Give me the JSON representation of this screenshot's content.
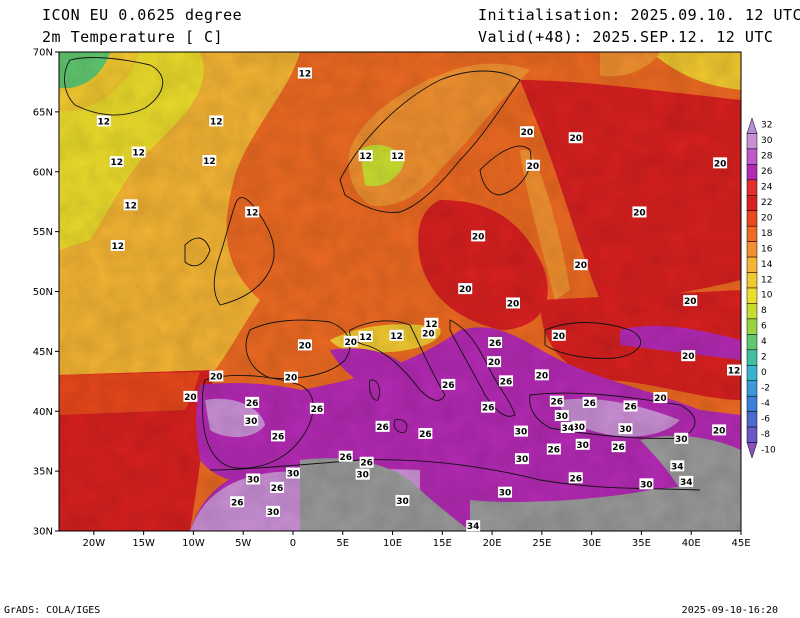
{
  "header": {
    "model": "ICON EU 0.0625 degree",
    "variable": "2m Temperature [ C]",
    "init": "Initialisation: 2025.09.10. 12 UTC",
    "valid": "Valid(+48): 2025.SEP.12. 12 UTC"
  },
  "footer": {
    "left": "GrADS: COLA/IGES",
    "right": "2025-09-10-16:20"
  },
  "axes": {
    "lat_labels": [
      "30N",
      "35N",
      "40N",
      "45N",
      "50N",
      "55N",
      "60N",
      "65N",
      "70N"
    ],
    "lon_labels": [
      "20W",
      "15W",
      "10W",
      "5W",
      "0",
      "5E",
      "10E",
      "15E",
      "20E",
      "25E",
      "30E",
      "35E",
      "40E",
      "45E"
    ]
  },
  "colorbar": {
    "labels": [
      "32",
      "30",
      "28",
      "26",
      "24",
      "22",
      "20",
      "18",
      "16",
      "14",
      "12",
      "10",
      "8",
      "6",
      "4",
      "2",
      "0",
      "-2",
      "-4",
      "-6",
      "-8",
      "-10"
    ],
    "colors": [
      "#b48cd8",
      "#c98fd4",
      "#c05ac8",
      "#b42ab4",
      "#e0302e",
      "#d82020",
      "#e8481c",
      "#ec6a22",
      "#f09030",
      "#f4b434",
      "#f0c830",
      "#ecdc2c",
      "#c8dc30",
      "#98d440",
      "#60c870",
      "#40c0a0",
      "#38b4d0",
      "#3a9ad8",
      "#3a80d8",
      "#4a6ad0",
      "#6a58c8",
      "#8a50c0"
    ]
  },
  "contour_labels": [
    {
      "text": "12",
      "lon": 1.2,
      "lat": 68.2
    },
    {
      "text": "12",
      "lon": -19.0,
      "lat": 64.2
    },
    {
      "text": "12",
      "lon": -15.5,
      "lat": 61.6
    },
    {
      "text": "12",
      "lon": -17.7,
      "lat": 60.8
    },
    {
      "text": "12",
      "lon": -7.7,
      "lat": 64.2
    },
    {
      "text": "12",
      "lon": -8.4,
      "lat": 60.9
    },
    {
      "text": "12",
      "lon": -16.3,
      "lat": 57.2
    },
    {
      "text": "12",
      "lon": -4.1,
      "lat": 56.6
    },
    {
      "text": "12",
      "lon": -17.6,
      "lat": 53.8
    },
    {
      "text": "12",
      "lon": 7.3,
      "lat": 61.3
    },
    {
      "text": "12",
      "lon": 10.5,
      "lat": 61.3
    },
    {
      "text": "20",
      "lon": 18.6,
      "lat": 54.6
    },
    {
      "text": "20",
      "lon": 23.5,
      "lat": 63.3
    },
    {
      "text": "20",
      "lon": 28.4,
      "lat": 62.8
    },
    {
      "text": "20",
      "lon": 24.1,
      "lat": 60.5
    },
    {
      "text": "20",
      "lon": 34.8,
      "lat": 56.6
    },
    {
      "text": "20",
      "lon": 42.9,
      "lat": 60.7
    },
    {
      "text": "20",
      "lon": 28.9,
      "lat": 52.2
    },
    {
      "text": "20",
      "lon": 17.3,
      "lat": 50.2
    },
    {
      "text": "20",
      "lon": 22.1,
      "lat": 49.0
    },
    {
      "text": "20",
      "lon": 26.7,
      "lat": 46.3
    },
    {
      "text": "20",
      "lon": 39.9,
      "lat": 49.2
    },
    {
      "text": "20",
      "lon": 1.2,
      "lat": 45.5
    },
    {
      "text": "20",
      "lon": 5.8,
      "lat": 45.8
    },
    {
      "text": "12",
      "lon": 7.3,
      "lat": 46.2
    },
    {
      "text": "12",
      "lon": 10.4,
      "lat": 46.3
    },
    {
      "text": "12",
      "lon": 13.9,
      "lat": 47.3
    },
    {
      "text": "20",
      "lon": 13.6,
      "lat": 46.5
    },
    {
      "text": "20",
      "lon": -7.7,
      "lat": 42.9
    },
    {
      "text": "20",
      "lon": -0.2,
      "lat": 42.8
    },
    {
      "text": "20",
      "lon": -10.3,
      "lat": 41.2
    },
    {
      "text": "20",
      "lon": 20.2,
      "lat": 44.1
    },
    {
      "text": "20",
      "lon": 25.0,
      "lat": 43.0
    },
    {
      "text": "20",
      "lon": 39.7,
      "lat": 44.6
    },
    {
      "text": "20",
      "lon": 36.9,
      "lat": 41.1
    },
    {
      "text": "20",
      "lon": 42.8,
      "lat": 38.4
    },
    {
      "text": "12",
      "lon": 44.3,
      "lat": 43.4
    },
    {
      "text": "26",
      "lon": 20.3,
      "lat": 45.7
    },
    {
      "text": "26",
      "lon": 15.6,
      "lat": 42.2
    },
    {
      "text": "26",
      "lon": 21.4,
      "lat": 42.5
    },
    {
      "text": "26",
      "lon": -4.1,
      "lat": 40.7
    },
    {
      "text": "26",
      "lon": 2.4,
      "lat": 40.2
    },
    {
      "text": "26",
      "lon": 9.0,
      "lat": 38.7
    },
    {
      "text": "26",
      "lon": 19.6,
      "lat": 40.3
    },
    {
      "text": "26",
      "lon": 26.5,
      "lat": 40.8
    },
    {
      "text": "26",
      "lon": 29.8,
      "lat": 40.7
    },
    {
      "text": "26",
      "lon": 33.9,
      "lat": 40.4
    },
    {
      "text": "26",
      "lon": -1.5,
      "lat": 37.9
    },
    {
      "text": "26",
      "lon": 13.3,
      "lat": 38.1
    },
    {
      "text": "26",
      "lon": 5.3,
      "lat": 36.2
    },
    {
      "text": "26",
      "lon": 7.4,
      "lat": 35.7
    },
    {
      "text": "26",
      "lon": 26.2,
      "lat": 36.8
    },
    {
      "text": "26",
      "lon": 32.7,
      "lat": 37.0
    },
    {
      "text": "26",
      "lon": -1.6,
      "lat": 33.6
    },
    {
      "text": "26",
      "lon": -5.6,
      "lat": 32.4
    },
    {
      "text": "26",
      "lon": 28.4,
      "lat": 34.4
    },
    {
      "text": "30",
      "lon": -4.2,
      "lat": 39.2
    },
    {
      "text": "30",
      "lon": 22.9,
      "lat": 38.3
    },
    {
      "text": "30",
      "lon": 27.0,
      "lat": 39.6
    },
    {
      "text": "30",
      "lon": 28.7,
      "lat": 38.7
    },
    {
      "text": "30",
      "lon": 29.1,
      "lat": 37.2
    },
    {
      "text": "30",
      "lon": 33.4,
      "lat": 38.5
    },
    {
      "text": "30",
      "lon": 39.0,
      "lat": 37.7
    },
    {
      "text": "30",
      "lon": 7.0,
      "lat": 34.7
    },
    {
      "text": "30",
      "lon": 23.0,
      "lat": 36.0
    },
    {
      "text": "30",
      "lon": 0.0,
      "lat": 34.8
    },
    {
      "text": "30",
      "lon": -4.0,
      "lat": 34.3
    },
    {
      "text": "30",
      "lon": -2.0,
      "lat": 31.6
    },
    {
      "text": "30",
      "lon": 11.0,
      "lat": 32.5
    },
    {
      "text": "30",
      "lon": 21.3,
      "lat": 33.2
    },
    {
      "text": "30",
      "lon": 35.5,
      "lat": 33.9
    },
    {
      "text": "34",
      "lon": 27.6,
      "lat": 38.6
    },
    {
      "text": "34",
      "lon": 38.6,
      "lat": 35.4
    },
    {
      "text": "34",
      "lon": 39.5,
      "lat": 34.1
    },
    {
      "text": "34",
      "lon": 18.1,
      "lat": 30.4
    }
  ]
}
